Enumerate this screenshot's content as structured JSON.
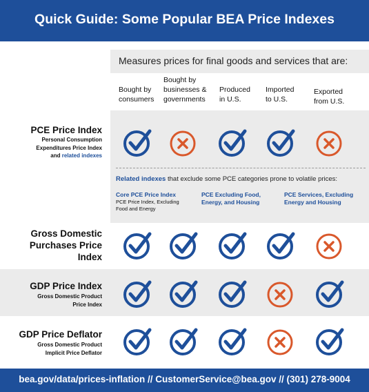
{
  "header": {
    "title": "Quick Guide: Some Popular BEA Price Indexes"
  },
  "measures_heading": "Measures prices for final goods and services that are:",
  "columns": [
    {
      "line1": "Bought by",
      "line2": "consumers"
    },
    {
      "line1": "Bought by",
      "line2": "businesses &",
      "line3": "governments"
    },
    {
      "line1": "Produced",
      "line2": "in U.S."
    },
    {
      "line1": "Imported",
      "line2": "to  U.S."
    },
    {
      "line1": "Exported",
      "line2": "from U.S."
    }
  ],
  "rows": [
    {
      "title": "PCE Price Index",
      "sub1": "Personal Consumption",
      "sub2": "Expenditures Price Index",
      "sub3_prefix": "and ",
      "sub3_link": "related indexes",
      "marks": [
        "check",
        "cross",
        "check",
        "check",
        "cross"
      ]
    },
    {
      "title1": "Gross Domestic",
      "title2": "Purchases Price",
      "title3": "Index",
      "marks": [
        "check",
        "check",
        "check",
        "check",
        "cross"
      ]
    },
    {
      "title": "GDP Price Index",
      "sub1": "Gross Domestic Product",
      "sub2": "Price Index",
      "marks": [
        "check",
        "check",
        "check",
        "cross",
        "check"
      ]
    },
    {
      "title": "GDP Price Deflator",
      "sub1": "Gross Domestic Product",
      "sub2": "Implicit Price Deflator",
      "marks": [
        "check",
        "check",
        "check",
        "cross",
        "check"
      ]
    }
  ],
  "related": {
    "lead_link": "Related indexes",
    "lead_rest": " that exclude some PCE categories prone to volatile prices:",
    "items": [
      {
        "name1": "Core PCE Price Index",
        "sub1": "PCE Price Index, Excluding",
        "sub2": "Food and Energy"
      },
      {
        "name1": "PCE Excluding Food,",
        "name2": "Energy, and Housing"
      },
      {
        "name1": "PCE Services, Excluding",
        "name2": "Energy and Housing"
      }
    ]
  },
  "footer": {
    "text": "bea.gov/data/prices-inflation // CustomerService@bea.gov // (301) 278-9004"
  },
  "colors": {
    "brand_blue": "#1e4f9a",
    "check_blue": "#1e4f9a",
    "cross_orange": "#d9582b",
    "band_gray": "#ebebeb"
  },
  "icons": {
    "check": "check-circle-icon",
    "cross": "x-circle-icon"
  }
}
